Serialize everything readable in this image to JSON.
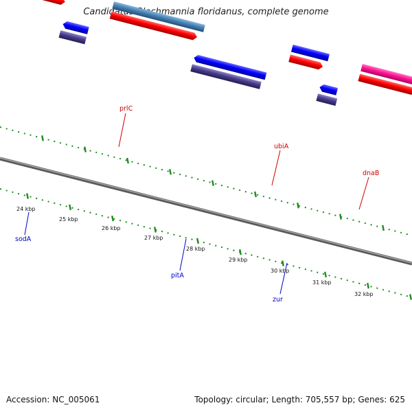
{
  "title": "Candidatus Blochmannia floridanus, complete genome",
  "footer": {
    "accession": "Accession: NC_005061",
    "stats": "Topology: circular; Length: 705,557 bp; Genes: 625"
  },
  "colors": {
    "backbone": "#7a7a7a",
    "ticks": "#1e8a1e",
    "forward_label": "#cc0000",
    "reverse_label": "#0000cc",
    "cds": "#ff0000",
    "pink_gene": "#ff1493",
    "steel_gene": "#4682b4",
    "blue_gene": "#0000ff",
    "slate_gene": "#483d8b",
    "salmon_gene": "#f08080"
  },
  "scale_labels": [
    "24 kbp",
    "25 kbp",
    "26 kbp",
    "27 kbp",
    "28 kbp",
    "29 kbp",
    "30 kbp",
    "31 kbp",
    "32 kbp"
  ],
  "gene_labels": {
    "forward": [
      "prlC",
      "ubiA",
      "dnaB"
    ],
    "reverse": [
      "sodA",
      "pitA",
      "zur"
    ]
  }
}
